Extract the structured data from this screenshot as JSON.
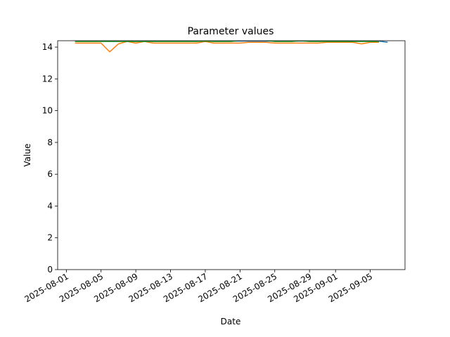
{
  "chart_data": {
    "type": "line",
    "title": "Parameter values",
    "xlabel": "Date",
    "ylabel": "Value",
    "x": [
      "2025-08-02",
      "2025-08-03",
      "2025-08-04",
      "2025-08-05",
      "2025-08-06",
      "2025-08-07",
      "2025-08-08",
      "2025-08-09",
      "2025-08-10",
      "2025-08-11",
      "2025-08-12",
      "2025-08-13",
      "2025-08-14",
      "2025-08-15",
      "2025-08-16",
      "2025-08-17",
      "2025-08-18",
      "2025-08-19",
      "2025-08-20",
      "2025-08-21",
      "2025-08-22",
      "2025-08-23",
      "2025-08-24",
      "2025-08-25",
      "2025-08-26",
      "2025-08-27",
      "2025-08-28",
      "2025-08-29",
      "2025-08-30",
      "2025-08-31",
      "2025-09-01",
      "2025-09-02",
      "2025-09-03",
      "2025-09-04",
      "2025-09-05",
      "2025-09-06",
      "2025-09-07"
    ],
    "series": [
      {
        "color": "#1f77b4",
        "values": [
          14.38,
          14.38,
          14.38,
          14.38,
          14.38,
          14.38,
          14.38,
          14.38,
          14.38,
          14.38,
          14.38,
          14.38,
          14.38,
          14.38,
          14.38,
          14.38,
          14.38,
          14.38,
          14.38,
          14.38,
          14.38,
          14.38,
          14.38,
          14.38,
          14.38,
          14.38,
          14.38,
          14.38,
          14.38,
          14.38,
          14.38,
          14.38,
          14.38,
          14.38,
          14.38,
          14.38,
          14.3
        ]
      },
      {
        "color": "#ff7f0e",
        "values": [
          14.25,
          14.25,
          14.25,
          14.25,
          13.7,
          14.2,
          14.35,
          14.25,
          14.35,
          14.25,
          14.25,
          14.25,
          14.25,
          14.25,
          14.25,
          14.35,
          14.25,
          14.25,
          14.25,
          14.25,
          14.3,
          14.3,
          14.3,
          14.25,
          14.25,
          14.25,
          14.25,
          14.25,
          14.25,
          14.3,
          14.3,
          14.3,
          14.3,
          14.2,
          14.3,
          14.3,
          null
        ]
      },
      {
        "color": "#2ca02c",
        "values": [
          14.35,
          14.35,
          14.35,
          14.35,
          14.35,
          14.35,
          14.35,
          14.35,
          14.35,
          14.35,
          14.35,
          14.35,
          14.35,
          14.35,
          14.35,
          14.38,
          14.35,
          14.35,
          14.35,
          14.42,
          14.42,
          14.42,
          14.42,
          14.35,
          14.35,
          14.35,
          14.4,
          14.35,
          14.35,
          14.35,
          14.35,
          14.35,
          14.35,
          14.35,
          14.35,
          14.35,
          null
        ]
      }
    ],
    "xlim": [
      "2025-07-31",
      "2025-09-09"
    ],
    "xticks": [
      "2025-08-01",
      "2025-08-05",
      "2025-08-09",
      "2025-08-13",
      "2025-08-17",
      "2025-08-21",
      "2025-08-25",
      "2025-08-29",
      "2025-09-01",
      "2025-09-05"
    ],
    "ylim": [
      0,
      14.4
    ],
    "yticks": [
      0,
      2,
      4,
      6,
      8,
      10,
      12,
      14
    ],
    "grid": false
  }
}
